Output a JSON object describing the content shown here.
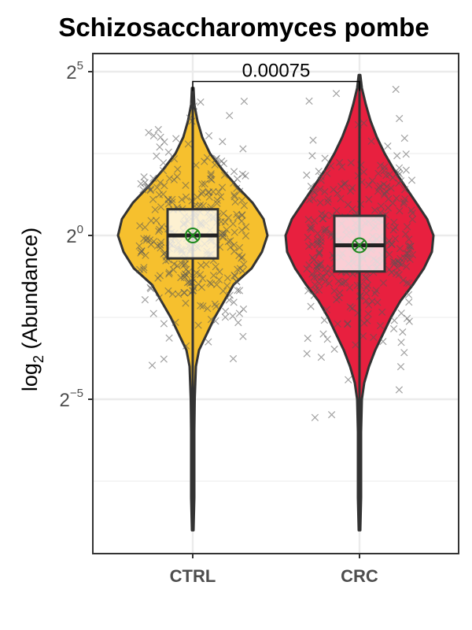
{
  "chart_data": {
    "type": "violin",
    "title": "Schizosaccharomyces pombe",
    "xlabel": "",
    "ylabel_base": "log",
    "ylabel_sub": "2",
    "ylabel_rest": " (Abundance)",
    "y_scale": "log2",
    "ylim_log2": [
      -10,
      5.6
    ],
    "y_ticks": [
      {
        "base": "2",
        "exp": "5",
        "value": 5
      },
      {
        "base": "2",
        "exp": "0",
        "value": 0
      },
      {
        "base": "2",
        "exp": "−5",
        "value": -5
      }
    ],
    "grid": true,
    "categories": [
      "CTRL",
      "CRC"
    ],
    "series": [
      {
        "category": "CTRL",
        "color": "#F6C02E",
        "log2_min": -9.0,
        "log2_max": 4.5,
        "q1": -0.7,
        "median": 0.0,
        "q3": 0.8,
        "whisker_low": -3.0,
        "whisker_high": 3.0,
        "mean": 0.0,
        "density": [
          [
            4.5,
            0.01
          ],
          [
            4.0,
            0.02
          ],
          [
            3.5,
            0.06
          ],
          [
            3.0,
            0.12
          ],
          [
            2.5,
            0.22
          ],
          [
            2.0,
            0.38
          ],
          [
            1.5,
            0.56
          ],
          [
            1.0,
            0.76
          ],
          [
            0.5,
            0.9
          ],
          [
            0.0,
            0.95
          ],
          [
            -0.5,
            0.88
          ],
          [
            -1.0,
            0.75
          ],
          [
            -1.5,
            0.52
          ],
          [
            -2.0,
            0.4
          ],
          [
            -2.5,
            0.28
          ],
          [
            -3.0,
            0.18
          ],
          [
            -3.5,
            0.08
          ],
          [
            -4.0,
            0.04
          ],
          [
            -5.0,
            0.025
          ],
          [
            -6.0,
            0.02
          ],
          [
            -7.0,
            0.02
          ],
          [
            -8.0,
            0.02
          ],
          [
            -9.0,
            0.01
          ]
        ]
      },
      {
        "category": "CRC",
        "color": "#E8203F",
        "log2_min": -9.0,
        "log2_max": 4.9,
        "q1": -1.1,
        "median": -0.3,
        "q3": 0.6,
        "whisker_low": -3.7,
        "whisker_high": 3.0,
        "mean": -0.3,
        "density": [
          [
            4.9,
            0.01
          ],
          [
            4.5,
            0.03
          ],
          [
            4.0,
            0.08
          ],
          [
            3.5,
            0.14
          ],
          [
            3.0,
            0.22
          ],
          [
            2.5,
            0.32
          ],
          [
            2.0,
            0.44
          ],
          [
            1.5,
            0.58
          ],
          [
            1.0,
            0.72
          ],
          [
            0.5,
            0.86
          ],
          [
            0.0,
            0.94
          ],
          [
            -0.5,
            0.92
          ],
          [
            -1.0,
            0.82
          ],
          [
            -1.5,
            0.68
          ],
          [
            -2.0,
            0.52
          ],
          [
            -2.5,
            0.4
          ],
          [
            -3.0,
            0.3
          ],
          [
            -3.5,
            0.2
          ],
          [
            -4.0,
            0.12
          ],
          [
            -4.5,
            0.06
          ],
          [
            -5.0,
            0.03
          ],
          [
            -6.0,
            0.02
          ],
          [
            -7.0,
            0.02
          ],
          [
            -8.0,
            0.02
          ],
          [
            -9.0,
            0.01
          ]
        ]
      }
    ],
    "comparison": {
      "from": "CTRL",
      "to": "CRC",
      "p_value": "0.00075",
      "bracket_log2": 4.7
    }
  }
}
